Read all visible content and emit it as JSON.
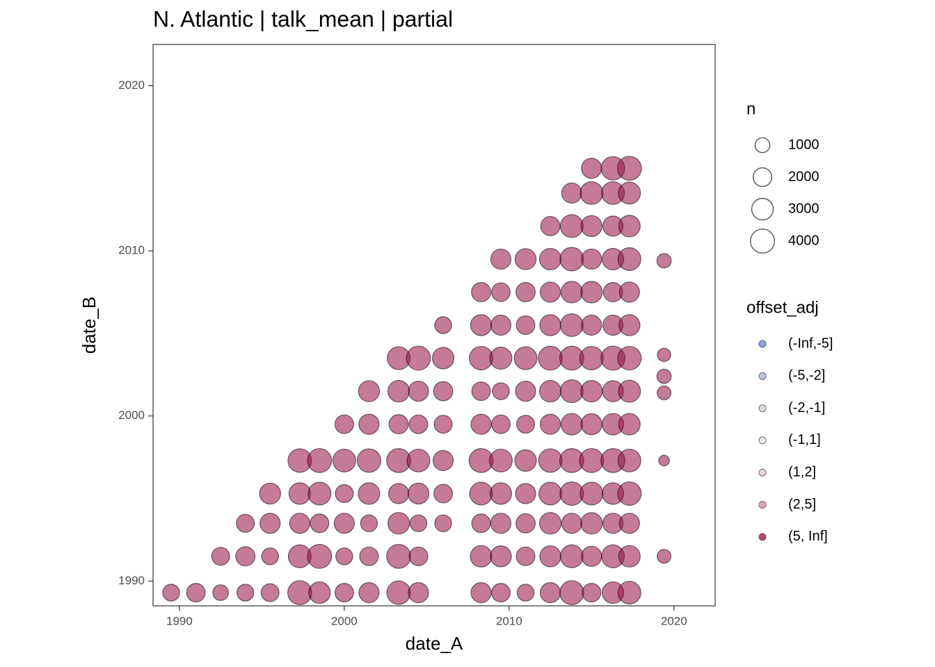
{
  "chart_data": {
    "type": "scatter",
    "title": "N. Atlantic | talk_mean | partial",
    "x_label": "date_A",
    "y_label": "date_B",
    "xlim": [
      1988.4,
      2022.5
    ],
    "ylim": [
      1988.5,
      2022.5
    ],
    "xticks": [
      1990,
      2000,
      2010,
      2020
    ],
    "yticks": [
      1990,
      2000,
      2010,
      2020
    ],
    "grid": false,
    "size_legend": {
      "title": "n",
      "values": [
        1000,
        2000,
        3000,
        4000
      ]
    },
    "color_legend_title": "offset_adj",
    "series": [
      {
        "name": "(-Inf,-5]",
        "color": "#6b86c9",
        "x": [],
        "y": [],
        "size": []
      },
      {
        "name": "(-5,-2]",
        "color": "#a3b1d8",
        "x": [],
        "y": [],
        "size": []
      },
      {
        "name": "(-2,-1]",
        "color": "#cfd3e2",
        "x": [],
        "y": [],
        "size": []
      },
      {
        "name": "(-1,1]",
        "color": "#e6e6e6",
        "x": [],
        "y": [],
        "size": []
      },
      {
        "name": "(1,2]",
        "color": "#e3c6cf",
        "x": [],
        "y": [],
        "size": []
      },
      {
        "name": "(2,5]",
        "color": "#cc8ea2",
        "x": [],
        "y": [],
        "size": []
      },
      {
        "name": "(5, Inf]",
        "color": "#960d44",
        "x": [
          1989.5,
          1991,
          1992.5,
          1992.5,
          1994,
          1994,
          1994,
          1995.5,
          1995.5,
          1995.5,
          1995.5,
          1997.3,
          1997.3,
          1997.3,
          1997.3,
          1997.3,
          1998.5,
          1998.5,
          1998.5,
          1998.5,
          1998.5,
          2000,
          2000,
          2000,
          2000,
          2000,
          2000,
          2001.5,
          2001.5,
          2001.5,
          2001.5,
          2001.5,
          2001.5,
          2001.5,
          2003.3,
          2003.3,
          2003.3,
          2003.3,
          2003.3,
          2003.3,
          2003.3,
          2003.3,
          2004.5,
          2004.5,
          2004.5,
          2004.5,
          2004.5,
          2004.5,
          2004.5,
          2004.5,
          2006,
          2006,
          2006,
          2006,
          2006,
          2006,
          2006,
          2008.3,
          2008.3,
          2008.3,
          2008.3,
          2008.3,
          2008.3,
          2008.3,
          2008.3,
          2008.3,
          2008.3,
          2009.5,
          2009.5,
          2009.5,
          2009.5,
          2009.5,
          2009.5,
          2009.5,
          2009.5,
          2009.5,
          2009.5,
          2009.5,
          2011,
          2011,
          2011,
          2011,
          2011,
          2011,
          2011,
          2011,
          2011,
          2011,
          2011,
          2012.5,
          2012.5,
          2012.5,
          2012.5,
          2012.5,
          2012.5,
          2012.5,
          2012.5,
          2012.5,
          2012.5,
          2012.5,
          2012.5,
          2013.8,
          2013.8,
          2013.8,
          2013.8,
          2013.8,
          2013.8,
          2013.8,
          2013.8,
          2013.8,
          2013.8,
          2013.8,
          2013.8,
          2013.8,
          2015,
          2015,
          2015,
          2015,
          2015,
          2015,
          2015,
          2015,
          2015,
          2015,
          2015,
          2015,
          2015,
          2015,
          2016.3,
          2016.3,
          2016.3,
          2016.3,
          2016.3,
          2016.3,
          2016.3,
          2016.3,
          2016.3,
          2016.3,
          2016.3,
          2016.3,
          2016.3,
          2016.3,
          2017.3,
          2017.3,
          2017.3,
          2017.3,
          2017.3,
          2017.3,
          2017.3,
          2017.3,
          2017.3,
          2017.3,
          2017.3,
          2017.3,
          2017.3,
          2017.3,
          2019.4,
          2019.4,
          2019.4,
          2019.4,
          2019.4,
          2019.4
        ],
        "y": [
          1989.3,
          1989.3,
          1989.3,
          1991.5,
          1989.3,
          1991.5,
          1993.5,
          1989.3,
          1991.5,
          1993.5,
          1995.3,
          1989.3,
          1991.5,
          1993.5,
          1995.3,
          1997.3,
          1989.3,
          1991.5,
          1993.5,
          1995.3,
          1997.3,
          1989.3,
          1991.5,
          1993.5,
          1995.3,
          1997.3,
          1999.5,
          1989.3,
          1991.5,
          1993.5,
          1995.3,
          1997.3,
          1999.5,
          2001.5,
          1989.3,
          1991.5,
          1993.5,
          1995.3,
          1997.3,
          1999.5,
          2001.5,
          2003.5,
          1989.3,
          1991.5,
          1993.5,
          1995.3,
          1997.3,
          1999.5,
          2001.5,
          2003.5,
          1993.5,
          1995.3,
          1997.3,
          1999.5,
          2001.5,
          2003.5,
          2005.5,
          1989.3,
          1991.5,
          1993.5,
          1995.3,
          1997.3,
          1999.5,
          2001.5,
          2003.5,
          2005.5,
          2007.5,
          1989.3,
          1991.5,
          1993.5,
          1995.3,
          1997.3,
          1999.5,
          2001.5,
          2003.5,
          2005.5,
          2007.5,
          2009.5,
          1989.3,
          1991.5,
          1993.5,
          1995.3,
          1997.3,
          1999.5,
          2001.5,
          2003.5,
          2005.5,
          2007.5,
          2009.5,
          1989.3,
          1991.5,
          1993.5,
          1995.3,
          1997.3,
          1999.5,
          2001.5,
          2003.5,
          2005.5,
          2007.5,
          2009.5,
          2011.5,
          1989.3,
          1991.5,
          1993.5,
          1995.3,
          1997.3,
          1999.5,
          2001.5,
          2003.5,
          2005.5,
          2007.5,
          2009.5,
          2011.5,
          2013.5,
          1989.3,
          1991.5,
          1993.5,
          1995.3,
          1997.3,
          1999.5,
          2001.5,
          2003.5,
          2005.5,
          2007.5,
          2009.5,
          2011.5,
          2013.5,
          2015,
          1989.3,
          1991.5,
          1993.5,
          1995.3,
          1997.3,
          1999.5,
          2001.5,
          2003.5,
          2005.5,
          2007.5,
          2009.5,
          2011.5,
          2013.5,
          2015,
          1989.3,
          1991.5,
          1993.5,
          1995.3,
          1997.3,
          1999.5,
          2001.5,
          2003.5,
          2005.5,
          2007.5,
          2009.5,
          2011.5,
          2013.5,
          2015,
          2009.4,
          2003.7,
          2002.4,
          2001.4,
          1997.3,
          1991.5
        ],
        "size": [
          1500,
          2000,
          1200,
          1800,
          1500,
          2200,
          1800,
          1800,
          1500,
          2500,
          2800,
          4000,
          3500,
          2500,
          3000,
          3800,
          3000,
          4000,
          2000,
          3500,
          4000,
          2000,
          1500,
          2500,
          1800,
          3500,
          2000,
          2500,
          2000,
          1500,
          3000,
          3800,
          2500,
          2800,
          3800,
          4000,
          3000,
          2500,
          4000,
          2200,
          3000,
          3500,
          2500,
          2000,
          1500,
          2800,
          3500,
          2000,
          2500,
          4000,
          1500,
          2000,
          2500,
          1800,
          2200,
          3000,
          1500,
          2500,
          3000,
          2000,
          3500,
          4000,
          2500,
          2000,
          3800,
          2800,
          2200,
          2000,
          2800,
          2500,
          3000,
          3500,
          2000,
          1500,
          3200,
          2500,
          2000,
          2500,
          1500,
          2000,
          2200,
          2500,
          3000,
          1800,
          2500,
          3500,
          2000,
          2200,
          2800,
          2500,
          2800,
          3000,
          3500,
          3800,
          2500,
          3000,
          4000,
          2800,
          2500,
          3000,
          2200,
          4000,
          3500,
          2500,
          3800,
          4000,
          3000,
          3500,
          4000,
          3500,
          3000,
          3800,
          3500,
          2500,
          2000,
          2500,
          3000,
          3500,
          4000,
          2800,
          3000,
          3800,
          2500,
          3000,
          2500,
          2800,
          3500,
          2500,
          3000,
          3500,
          2500,
          3000,
          4000,
          3000,
          2800,
          4000,
          2500,
          2200,
          3000,
          2500,
          3500,
          3800,
          3500,
          3000,
          2500,
          3800,
          3500,
          3000,
          3200,
          3800,
          2800,
          2500,
          3500,
          3000,
          3200,
          4000,
          900,
          700,
          900,
          800,
          300,
          800
        ]
      }
    ]
  }
}
